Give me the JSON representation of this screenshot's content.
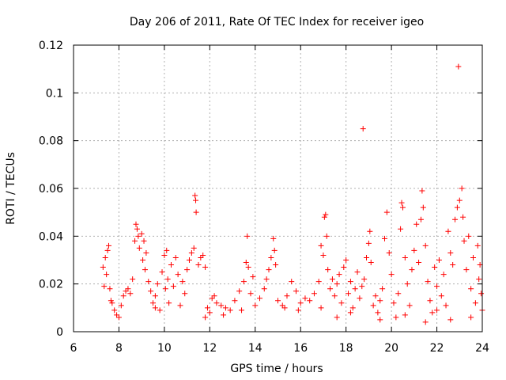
{
  "chart_data": {
    "type": "scatter",
    "title": "Day 206 of 2011, Rate Of TEC Index for receiver igeo",
    "xlabel": "GPS time / hours",
    "ylabel": "ROTI / TECUs",
    "xlim": [
      6,
      24
    ],
    "ylim": [
      0,
      0.12
    ],
    "x_ticks": [
      6,
      8,
      10,
      12,
      14,
      16,
      18,
      20,
      22,
      24
    ],
    "y_ticks": [
      0,
      0.02,
      0.04,
      0.06,
      0.08,
      0.1,
      0.12
    ],
    "x_tick_labels": [
      "6",
      "8",
      "10",
      "12",
      "14",
      "16",
      "18",
      "20",
      "22",
      "24"
    ],
    "y_tick_labels": [
      "0",
      "0.02",
      "0.04",
      "0.06",
      "0.08",
      "0.1",
      "0.12"
    ],
    "grid": true,
    "marker": "+",
    "color": "#ff0000",
    "series": [
      {
        "name": "ROTI",
        "points": [
          [
            7.3,
            0.027
          ],
          [
            7.35,
            0.019
          ],
          [
            7.4,
            0.031
          ],
          [
            7.45,
            0.024
          ],
          [
            7.5,
            0.034
          ],
          [
            7.55,
            0.036
          ],
          [
            7.6,
            0.018
          ],
          [
            7.65,
            0.013
          ],
          [
            7.7,
            0.012
          ],
          [
            7.8,
            0.009
          ],
          [
            7.9,
            0.007
          ],
          [
            8.0,
            0.006
          ],
          [
            8.1,
            0.011
          ],
          [
            8.2,
            0.015
          ],
          [
            8.3,
            0.017
          ],
          [
            8.4,
            0.018
          ],
          [
            8.5,
            0.016
          ],
          [
            8.6,
            0.022
          ],
          [
            8.7,
            0.038
          ],
          [
            8.75,
            0.045
          ],
          [
            8.8,
            0.043
          ],
          [
            8.85,
            0.04
          ],
          [
            8.9,
            0.035
          ],
          [
            9.0,
            0.041
          ],
          [
            9.05,
            0.03
          ],
          [
            9.1,
            0.038
          ],
          [
            9.15,
            0.026
          ],
          [
            9.2,
            0.033
          ],
          [
            9.3,
            0.021
          ],
          [
            9.4,
            0.017
          ],
          [
            9.5,
            0.012
          ],
          [
            9.6,
            0.015
          ],
          [
            9.7,
            0.02
          ],
          [
            9.8,
            0.009
          ],
          [
            9.9,
            0.025
          ],
          [
            10.0,
            0.032
          ],
          [
            10.05,
            0.018
          ],
          [
            10.1,
            0.034
          ],
          [
            10.15,
            0.022
          ],
          [
            10.2,
            0.012
          ],
          [
            10.3,
            0.028
          ],
          [
            10.4,
            0.019
          ],
          [
            10.5,
            0.031
          ],
          [
            10.6,
            0.024
          ],
          [
            10.7,
            0.011
          ],
          [
            10.8,
            0.021
          ],
          [
            10.9,
            0.016
          ],
          [
            11.0,
            0.026
          ],
          [
            11.1,
            0.03
          ],
          [
            11.2,
            0.033
          ],
          [
            11.3,
            0.035
          ],
          [
            11.35,
            0.057
          ],
          [
            11.38,
            0.055
          ],
          [
            11.4,
            0.05
          ],
          [
            11.5,
            0.028
          ],
          [
            11.6,
            0.031
          ],
          [
            11.7,
            0.032
          ],
          [
            11.8,
            0.027
          ],
          [
            11.9,
            0.01
          ],
          [
            12.0,
            0.008
          ],
          [
            12.1,
            0.014
          ],
          [
            12.2,
            0.015
          ],
          [
            12.3,
            0.012
          ],
          [
            12.5,
            0.011
          ],
          [
            12.7,
            0.01
          ],
          [
            12.9,
            0.009
          ],
          [
            13.1,
            0.013
          ],
          [
            13.3,
            0.017
          ],
          [
            13.5,
            0.021
          ],
          [
            13.6,
            0.029
          ],
          [
            13.65,
            0.04
          ],
          [
            13.7,
            0.027
          ],
          [
            13.8,
            0.016
          ],
          [
            13.9,
            0.023
          ],
          [
            14.0,
            0.011
          ],
          [
            14.2,
            0.014
          ],
          [
            14.4,
            0.018
          ],
          [
            14.5,
            0.022
          ],
          [
            14.6,
            0.026
          ],
          [
            14.7,
            0.031
          ],
          [
            14.8,
            0.039
          ],
          [
            14.85,
            0.034
          ],
          [
            14.9,
            0.028
          ],
          [
            15.0,
            0.013
          ],
          [
            15.2,
            0.011
          ],
          [
            15.4,
            0.015
          ],
          [
            15.6,
            0.021
          ],
          [
            15.8,
            0.017
          ],
          [
            15.9,
            0.009
          ],
          [
            16.0,
            0.012
          ],
          [
            16.2,
            0.014
          ],
          [
            16.4,
            0.013
          ],
          [
            16.6,
            0.016
          ],
          [
            16.8,
            0.021
          ],
          [
            16.9,
            0.036
          ],
          [
            17.0,
            0.032
          ],
          [
            17.05,
            0.048
          ],
          [
            17.1,
            0.049
          ],
          [
            17.15,
            0.04
          ],
          [
            17.2,
            0.026
          ],
          [
            17.3,
            0.018
          ],
          [
            17.4,
            0.022
          ],
          [
            17.5,
            0.015
          ],
          [
            17.6,
            0.02
          ],
          [
            17.7,
            0.024
          ],
          [
            17.8,
            0.012
          ],
          [
            17.9,
            0.027
          ],
          [
            18.0,
            0.03
          ],
          [
            18.1,
            0.016
          ],
          [
            18.2,
            0.021
          ],
          [
            18.3,
            0.01
          ],
          [
            18.4,
            0.018
          ],
          [
            18.5,
            0.025
          ],
          [
            18.6,
            0.014
          ],
          [
            18.7,
            0.019
          ],
          [
            18.75,
            0.085
          ],
          [
            18.8,
            0.022
          ],
          [
            18.9,
            0.031
          ],
          [
            19.0,
            0.037
          ],
          [
            19.05,
            0.042
          ],
          [
            19.1,
            0.029
          ],
          [
            19.2,
            0.011
          ],
          [
            19.3,
            0.015
          ],
          [
            19.4,
            0.008
          ],
          [
            19.5,
            0.013
          ],
          [
            19.6,
            0.018
          ],
          [
            19.7,
            0.039
          ],
          [
            19.8,
            0.05
          ],
          [
            19.9,
            0.033
          ],
          [
            20.0,
            0.024
          ],
          [
            20.1,
            0.012
          ],
          [
            20.2,
            0.006
          ],
          [
            20.3,
            0.016
          ],
          [
            20.4,
            0.043
          ],
          [
            20.45,
            0.054
          ],
          [
            20.5,
            0.052
          ],
          [
            20.6,
            0.031
          ],
          [
            20.7,
            0.02
          ],
          [
            20.8,
            0.011
          ],
          [
            20.9,
            0.026
          ],
          [
            21.0,
            0.034
          ],
          [
            21.1,
            0.045
          ],
          [
            21.2,
            0.029
          ],
          [
            21.3,
            0.047
          ],
          [
            21.35,
            0.059
          ],
          [
            21.4,
            0.052
          ],
          [
            21.5,
            0.036
          ],
          [
            21.6,
            0.021
          ],
          [
            21.7,
            0.013
          ],
          [
            21.8,
            0.008
          ],
          [
            21.9,
            0.027
          ],
          [
            22.0,
            0.019
          ],
          [
            22.1,
            0.03
          ],
          [
            22.2,
            0.015
          ],
          [
            22.3,
            0.024
          ],
          [
            22.4,
            0.011
          ],
          [
            22.5,
            0.042
          ],
          [
            22.6,
            0.033
          ],
          [
            22.7,
            0.028
          ],
          [
            22.8,
            0.047
          ],
          [
            22.9,
            0.052
          ],
          [
            22.95,
            0.111
          ],
          [
            23.0,
            0.055
          ],
          [
            23.1,
            0.06
          ],
          [
            23.15,
            0.048
          ],
          [
            23.2,
            0.038
          ],
          [
            23.3,
            0.026
          ],
          [
            23.4,
            0.04
          ],
          [
            23.5,
            0.018
          ],
          [
            23.6,
            0.031
          ],
          [
            23.7,
            0.012
          ],
          [
            23.8,
            0.036
          ],
          [
            23.85,
            0.022
          ],
          [
            23.9,
            0.028
          ],
          [
            23.95,
            0.016
          ],
          [
            24.0,
            0.009
          ],
          [
            19.5,
            0.005
          ],
          [
            20.6,
            0.007
          ],
          [
            21.5,
            0.004
          ],
          [
            22.6,
            0.005
          ],
          [
            17.6,
            0.006
          ],
          [
            23.5,
            0.006
          ],
          [
            22.0,
            0.009
          ],
          [
            18.2,
            0.008
          ],
          [
            16.9,
            0.01
          ],
          [
            9.6,
            0.01
          ],
          [
            11.8,
            0.006
          ],
          [
            13.4,
            0.009
          ],
          [
            15.3,
            0.01
          ],
          [
            12.6,
            0.007
          ]
        ]
      }
    ]
  }
}
